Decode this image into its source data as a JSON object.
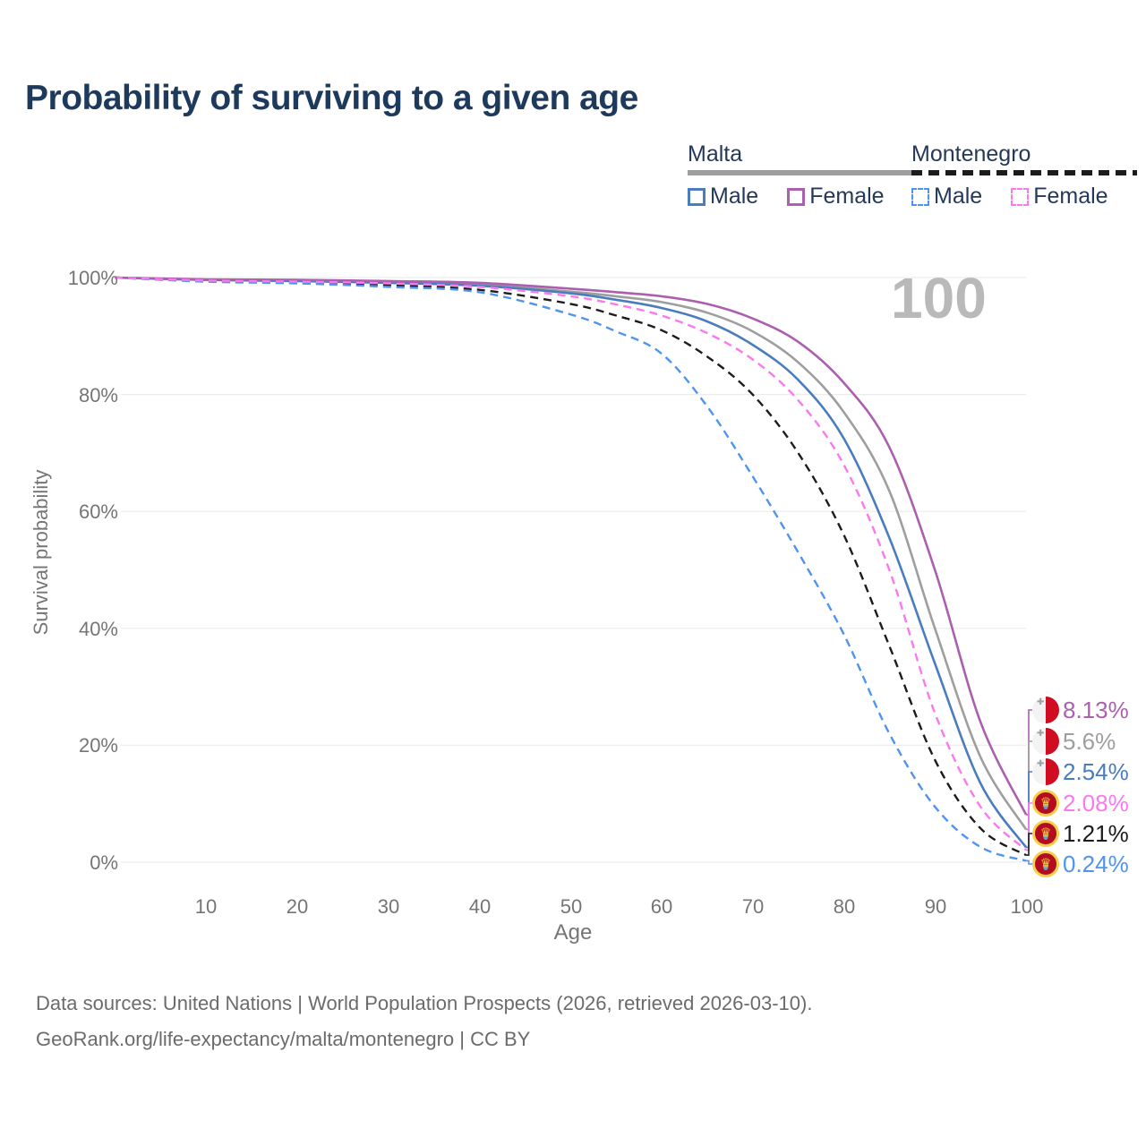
{
  "title": "Probability of surviving to a given age",
  "watermark": "100",
  "legend": {
    "malta": {
      "label": "Malta",
      "male_label": "Male",
      "female_label": "Female"
    },
    "montenegro": {
      "label": "Montenegro",
      "male_label": "Male",
      "female_label": "Female"
    }
  },
  "axes": {
    "x_label": "Age",
    "y_label": "Survival probability"
  },
  "colors": {
    "title_text": "#1d3a5c",
    "legend_text": "#24395a",
    "tick_text": "#757575",
    "gridline": "#ececec",
    "watermark": "#b9b9b9",
    "footer_text": "#6b6b6b",
    "malta_flag_red": "#cf0c21",
    "montenegro_flag_red": "#b30d1f",
    "montenegro_flag_gold": "#f6cf4b"
  },
  "end_labels": [
    {
      "value": "8.13%",
      "series": "Malta Female",
      "flag": "malta",
      "color": "#ab5fae"
    },
    {
      "value": "5.6%",
      "series": "Malta Both sexes",
      "flag": "malta",
      "color": "#9e9e9e"
    },
    {
      "value": "2.54%",
      "series": "Malta Male",
      "flag": "malta",
      "color": "#4a7dbe"
    },
    {
      "value": "2.08%",
      "series": "Montenegro Female",
      "flag": "montenegro",
      "color": "#fb78ef"
    },
    {
      "value": "1.21%",
      "series": "Montenegro Both sexes",
      "flag": "montenegro",
      "color": "#1c1c1c"
    },
    {
      "value": "0.24%",
      "series": "Montenegro Male",
      "flag": "montenegro",
      "color": "#4f94f0"
    }
  ],
  "footer": {
    "line1": "Data sources: United Nations | World Population Prospects (2026, retrieved 2026-03-10).",
    "line2": "GeoRank.org/life-expectancy/malta/montenegro | CC BY"
  },
  "chart_data": {
    "type": "line",
    "title": "Probability of surviving to a given age",
    "xlabel": "Age",
    "ylabel": "Survival probability",
    "xlim": [
      0,
      100
    ],
    "ylim": [
      0,
      100
    ],
    "grid": "horizontal",
    "legend_position": "top-right",
    "x": [
      0,
      10,
      20,
      30,
      40,
      50,
      55,
      60,
      65,
      70,
      75,
      80,
      85,
      90,
      95,
      100
    ],
    "xticklabels": [
      "10",
      "20",
      "30",
      "40",
      "50",
      "60",
      "70",
      "80",
      "90",
      "100"
    ],
    "yticklabels": [
      "100%",
      "80%",
      "60%",
      "40%",
      "20%",
      "0%"
    ],
    "series": [
      {
        "name": "Malta Both sexes",
        "country": "Malta",
        "sex": "both",
        "color": "#9e9e9e",
        "dash": "solid",
        "end_label": "5.6%",
        "values": [
          100,
          99.6,
          99.5,
          99.2,
          98.8,
          97.6,
          96.8,
          95.8,
          94,
          90.8,
          85.5,
          77,
          63.5,
          40,
          18,
          5.6
        ]
      },
      {
        "name": "Malta Male",
        "country": "Malta",
        "sex": "male",
        "color": "#4a7dbe",
        "dash": "solid",
        "end_label": "2.54%",
        "values": [
          100,
          99.6,
          99.4,
          99.1,
          98.6,
          97.3,
          96.2,
          94.8,
          92.5,
          88.5,
          82.5,
          72.5,
          55.5,
          34,
          13.5,
          2.54
        ]
      },
      {
        "name": "Malta Female",
        "country": "Malta",
        "sex": "female",
        "color": "#ab5fae",
        "dash": "solid",
        "end_label": "8.13%",
        "values": [
          100,
          99.7,
          99.6,
          99.4,
          99.1,
          98.1,
          97.5,
          96.8,
          95.5,
          93,
          89,
          82,
          71,
          50,
          24,
          8.13
        ]
      },
      {
        "name": "Montenegro Both sexes",
        "country": "Montenegro",
        "sex": "both",
        "color": "#1c1c1c",
        "dash": "dashed",
        "end_label": "1.21%",
        "values": [
          100,
          99.4,
          99.1,
          98.7,
          97.9,
          95.5,
          93.5,
          91,
          86.5,
          80,
          70,
          56,
          37,
          17.5,
          5.8,
          1.21
        ]
      },
      {
        "name": "Montenegro Male",
        "country": "Montenegro",
        "sex": "male",
        "color": "#4f94f0",
        "dash": "dashed",
        "end_label": "0.24%",
        "values": [
          100,
          99.3,
          99,
          98.4,
          97.5,
          93.7,
          90.8,
          87,
          78,
          66,
          53,
          39,
          22,
          9.5,
          2.6,
          0.24
        ]
      },
      {
        "name": "Montenegro Female",
        "country": "Montenegro",
        "sex": "female",
        "color": "#fb78ef",
        "dash": "dashed",
        "end_label": "2.08%",
        "values": [
          100,
          99.5,
          99.3,
          99,
          98.4,
          96.8,
          95.4,
          93.5,
          90.5,
          86,
          79,
          68,
          50,
          25.5,
          9.5,
          2.08
        ]
      }
    ]
  }
}
